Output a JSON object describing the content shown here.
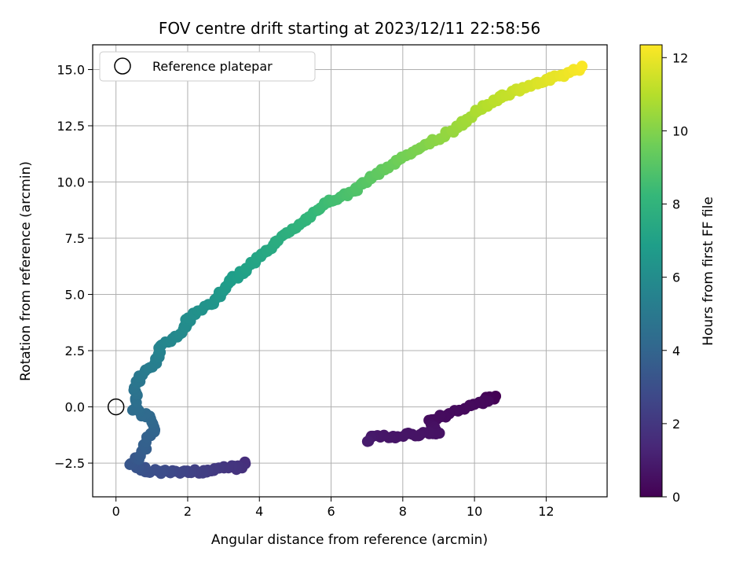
{
  "chart_data": {
    "type": "scatter",
    "title": "FOV centre drift starting at 2023/12/11 22:58:56",
    "xlabel": "Angular distance from reference (arcmin)",
    "ylabel": "Rotation from reference (arcmin)",
    "xlim": [
      -0.65,
      13.7
    ],
    "ylim": [
      -4.0,
      16.1
    ],
    "xticks": [
      0,
      2,
      4,
      6,
      8,
      10,
      12
    ],
    "yticks": [
      -2.5,
      0.0,
      2.5,
      5.0,
      7.5,
      10.0,
      12.5,
      15.0
    ],
    "ytick_labels": [
      "−2.5",
      "0.0",
      "2.5",
      "5.0",
      "7.5",
      "10.0",
      "12.5",
      "15.0"
    ],
    "grid": true,
    "legend": {
      "placement": "top-left",
      "entries": [
        "Reference platepar"
      ]
    },
    "reference_point": {
      "x": 0.0,
      "y": 0.0,
      "marker": "hollow-circle"
    },
    "colorbar": {
      "label": "Hours from first FF file",
      "colormap": "viridis",
      "range": [
        0,
        12.35
      ],
      "ticks": [
        0,
        2,
        4,
        6,
        8,
        10,
        12
      ]
    },
    "colormap_stops": [
      "#440154",
      "#482878",
      "#3e4989",
      "#31688e",
      "#26828e",
      "#1f9e89",
      "#35b779",
      "#6ece58",
      "#b5de2b",
      "#fde725"
    ],
    "path_nodes": [
      {
        "x": 10.65,
        "y": 0.4,
        "t": 0.0
      },
      {
        "x": 10.3,
        "y": 0.4,
        "t": 0.1
      },
      {
        "x": 10.35,
        "y": 0.3,
        "t": 0.25
      },
      {
        "x": 8.75,
        "y": -0.6,
        "t": 0.4
      },
      {
        "x": 8.8,
        "y": -0.85,
        "t": 0.5
      },
      {
        "x": 8.97,
        "y": -1.15,
        "t": 0.6
      },
      {
        "x": 7.35,
        "y": -1.35,
        "t": 0.75
      },
      {
        "x": 7.1,
        "y": -1.4,
        "t": 0.85
      },
      {
        "x": 7.05,
        "y": -1.55,
        "t": 0.95
      },
      {
        "x": 3.65,
        "y": -2.5,
        "t": 1.6
      },
      {
        "x": 3.45,
        "y": -2.7,
        "t": 1.8
      },
      {
        "x": 2.9,
        "y": -2.7,
        "t": 2.0
      },
      {
        "x": 2.5,
        "y": -2.9,
        "t": 2.2
      },
      {
        "x": 1.9,
        "y": -2.85,
        "t": 2.5
      },
      {
        "x": 1.4,
        "y": -2.9,
        "t": 2.8
      },
      {
        "x": 1.0,
        "y": -2.85,
        "t": 3.0
      },
      {
        "x": 0.6,
        "y": -2.7,
        "t": 3.2
      },
      {
        "x": 0.4,
        "y": -2.55,
        "t": 3.3
      },
      {
        "x": 0.7,
        "y": -2.2,
        "t": 3.5
      },
      {
        "x": 0.85,
        "y": -1.5,
        "t": 3.8
      },
      {
        "x": 1.1,
        "y": -1.0,
        "t": 4.0
      },
      {
        "x": 0.9,
        "y": -0.5,
        "t": 4.2
      },
      {
        "x": 0.5,
        "y": -0.1,
        "t": 4.4
      },
      {
        "x": 0.55,
        "y": 0.5,
        "t": 4.6
      },
      {
        "x": 0.5,
        "y": 0.9,
        "t": 4.75
      },
      {
        "x": 0.75,
        "y": 1.5,
        "t": 5.0
      },
      {
        "x": 1.1,
        "y": 2.0,
        "t": 5.3
      },
      {
        "x": 1.3,
        "y": 2.8,
        "t": 5.6
      },
      {
        "x": 1.8,
        "y": 3.3,
        "t": 5.9
      },
      {
        "x": 2.1,
        "y": 4.1,
        "t": 6.1
      },
      {
        "x": 2.7,
        "y": 4.6,
        "t": 6.4
      },
      {
        "x": 3.2,
        "y": 5.6,
        "t": 6.8
      },
      {
        "x": 3.9,
        "y": 6.5,
        "t": 7.2
      },
      {
        "x": 4.5,
        "y": 7.4,
        "t": 7.6
      },
      {
        "x": 5.2,
        "y": 8.2,
        "t": 8.0
      },
      {
        "x": 5.8,
        "y": 9.0,
        "t": 8.4
      },
      {
        "x": 6.5,
        "y": 9.5,
        "t": 8.8
      },
      {
        "x": 7.2,
        "y": 10.3,
        "t": 9.2
      },
      {
        "x": 7.9,
        "y": 11.0,
        "t": 9.6
      },
      {
        "x": 8.5,
        "y": 11.5,
        "t": 9.9
      },
      {
        "x": 9.2,
        "y": 12.1,
        "t": 10.3
      },
      {
        "x": 9.8,
        "y": 12.8,
        "t": 10.6
      },
      {
        "x": 10.4,
        "y": 13.5,
        "t": 11.0
      },
      {
        "x": 11.0,
        "y": 14.0,
        "t": 11.3
      },
      {
        "x": 11.6,
        "y": 14.3,
        "t": 11.6
      },
      {
        "x": 12.2,
        "y": 14.6,
        "t": 11.9
      },
      {
        "x": 12.7,
        "y": 14.9,
        "t": 12.1
      },
      {
        "x": 13.0,
        "y": 15.15,
        "t": 12.3
      }
    ]
  }
}
